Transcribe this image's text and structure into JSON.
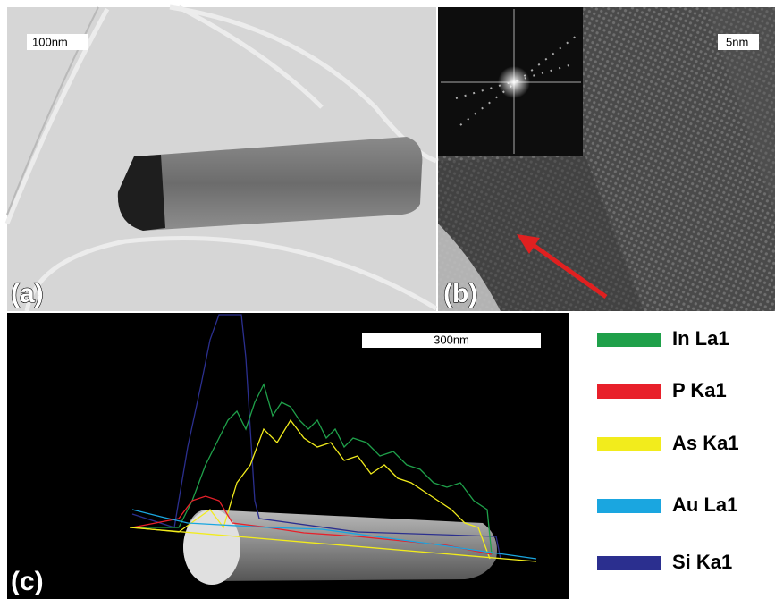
{
  "panels": [
    {
      "label": "(a)",
      "scale_bar": "100nm"
    },
    {
      "label": "(b)",
      "scale_bar": "5nm"
    },
    {
      "label": "(c)",
      "scale_bar": "300nm"
    }
  ],
  "legend": [
    {
      "name": "In La1",
      "color": "#1fa04a"
    },
    {
      "name": "P Ka1",
      "color": "#e8202a"
    },
    {
      "name": "As Ka1",
      "color": "#f2ec1c"
    },
    {
      "name": "Au La1",
      "color": "#1aa6e0"
    },
    {
      "name": "Si Ka1",
      "color": "#2b2f8f"
    }
  ]
}
